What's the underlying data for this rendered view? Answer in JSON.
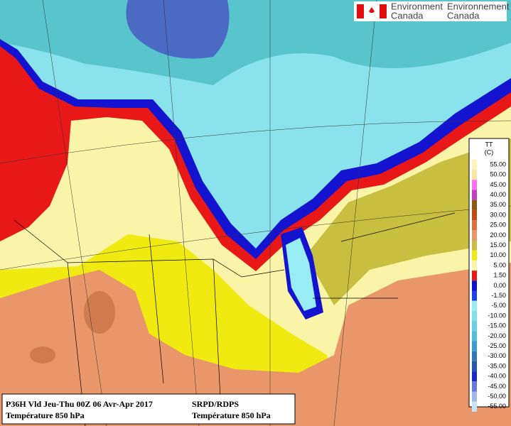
{
  "logo": {
    "english": [
      "Environment",
      "Canada"
    ],
    "french": [
      "Environnement",
      "Canada"
    ]
  },
  "legend": {
    "title": "TT",
    "unit": "(C)",
    "items": [
      {
        "label": "55.00",
        "color": "#fff4b8"
      },
      {
        "label": "50.00",
        "color": "#f8e6a0"
      },
      {
        "label": "45.00",
        "color": "#ff70f0"
      },
      {
        "label": "40.00",
        "color": "#c040c0"
      },
      {
        "label": "35.00",
        "color": "#8c5a10"
      },
      {
        "label": "30.00",
        "color": "#c04a10"
      },
      {
        "label": "25.00",
        "color": "#d87040"
      },
      {
        "label": "20.00",
        "color": "#e8966a"
      },
      {
        "label": "15.00",
        "color": "#c8be40"
      },
      {
        "label": "10.00",
        "color": "#f0ea10"
      },
      {
        "label": "5.00",
        "color": "#faf4a8"
      },
      {
        "label": "1.50",
        "color": "#e81818"
      },
      {
        "label": "0.00",
        "color": "#1010d0"
      },
      {
        "label": "-1.50",
        "color": "#2040e8"
      },
      {
        "label": "-5.00",
        "color": "#98ecf4"
      },
      {
        "label": "-10.00",
        "color": "#80e0ec"
      },
      {
        "label": "-15.00",
        "color": "#68d2e2"
      },
      {
        "label": "-20.00",
        "color": "#50c0d8"
      },
      {
        "label": "-25.00",
        "color": "#3c9ccc"
      },
      {
        "label": "-30.00",
        "color": "#3078b8"
      },
      {
        "label": "-35.00",
        "color": "#2858a8"
      },
      {
        "label": "-40.00",
        "color": "#1a2cc8"
      },
      {
        "label": "-45.00",
        "color": "#6a78d8"
      },
      {
        "label": "-50.00",
        "color": "#a0b8e4"
      },
      {
        "label": "-55.00",
        "color": "#c4e4f4"
      }
    ]
  },
  "caption": {
    "left": [
      "P36H Vld Jeu-Thu 00Z 06 Avr-Apr 2017",
      "Température 850 hPa"
    ],
    "right": [
      "SRPD/RDPS",
      "Température 850 hPa"
    ]
  }
}
